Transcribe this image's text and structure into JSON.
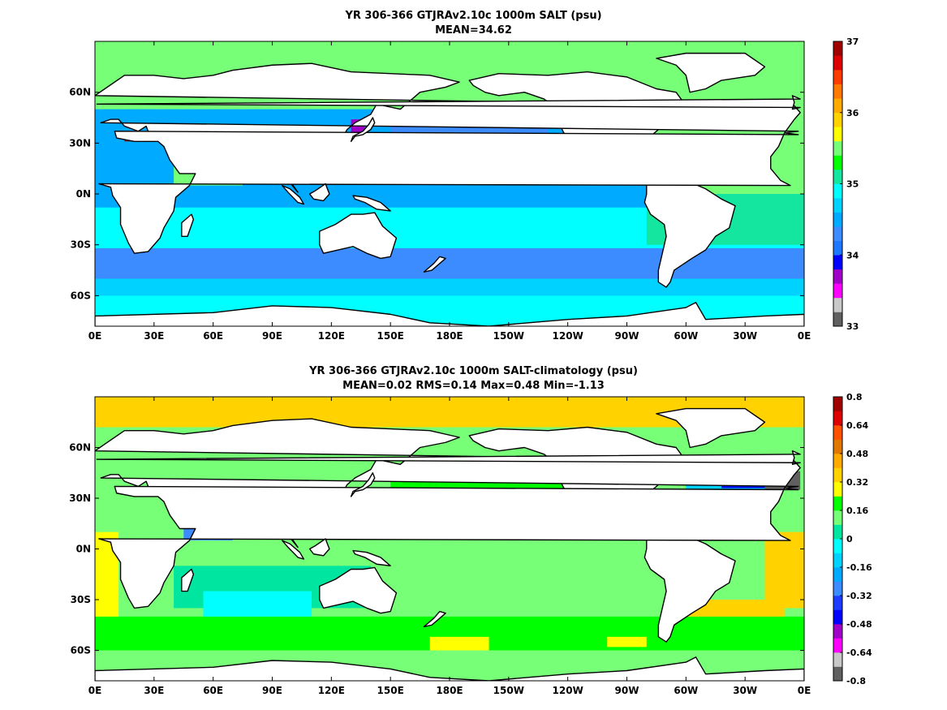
{
  "panels": {
    "top": {
      "title": "YR 306-366 GTJRAv2.10c 1000m SALT (psu)",
      "subtitle": "MEAN=34.62"
    },
    "bottom": {
      "title": "YR 306-366 GTJRAv2.10c 1000m SALT-climatology (psu)",
      "subtitle": "MEAN=0.02   RMS=0.14   Max=0.48   Min=-1.13"
    }
  },
  "chart_data": [
    {
      "type": "heatmap",
      "title": "YR 306-366 GTJRAv2.10c 1000m SALT (psu)",
      "subtitle": "MEAN=34.62",
      "xlabels": [
        "0E",
        "30E",
        "60E",
        "90E",
        "120E",
        "150E",
        "180E",
        "150W",
        "120W",
        "90W",
        "60W",
        "30W",
        "0E"
      ],
      "ylabels": [
        "60N",
        "30N",
        "0N",
        "30S",
        "60S"
      ],
      "xlim": [
        0,
        360
      ],
      "ylim": [
        -78,
        90
      ],
      "colorbar": {
        "ticks": [
          "37",
          "36",
          "35",
          "34",
          "33"
        ],
        "range": [
          33,
          37
        ],
        "levels": [
          33.0,
          33.2,
          33.4,
          33.6,
          33.8,
          34.0,
          34.2,
          34.4,
          34.6,
          34.8,
          35.0,
          35.2,
          35.4,
          35.6,
          35.8,
          36.0,
          36.2,
          36.4,
          36.6,
          36.8,
          37.0
        ],
        "colors": [
          "#606060",
          "#c8c8c8",
          "#ff00ff",
          "#a000c8",
          "#0000ff",
          "#1e78ff",
          "#3c8cff",
          "#00aaff",
          "#00d2ff",
          "#00ffff",
          "#14e6a0",
          "#00ff00",
          "#78ff78",
          "#ffff00",
          "#ffd200",
          "#ffaa00",
          "#ff7800",
          "#ff3c00",
          "#dc0000",
          "#a00000"
        ]
      }
    },
    {
      "type": "heatmap",
      "title": "YR 306-366 GTJRAv2.10c 1000m SALT-climatology (psu)",
      "subtitle": "MEAN=0.02   RMS=0.14   Max=0.48   Min=-1.13",
      "xlabels": [
        "0E",
        "30E",
        "60E",
        "90E",
        "120E",
        "150E",
        "180E",
        "150W",
        "120W",
        "90W",
        "60W",
        "30W",
        "0E"
      ],
      "ylabels": [
        "60N",
        "30N",
        "0N",
        "30S",
        "60S"
      ],
      "xlim": [
        0,
        360
      ],
      "ylim": [
        -78,
        90
      ],
      "colorbar": {
        "ticks": [
          "0.8",
          "0.64",
          "0.48",
          "0.32",
          "0.16",
          "0",
          "-0.16",
          "-0.32",
          "-0.48",
          "-0.64",
          "-0.8"
        ],
        "range": [
          -0.8,
          0.8
        ],
        "colors": [
          "#606060",
          "#c8c8c8",
          "#ff00ff",
          "#a000c8",
          "#0000ff",
          "#1e3cff",
          "#3c8cff",
          "#00aaff",
          "#00d2ff",
          "#00ffff",
          "#00e6a0",
          "#78ff78",
          "#00ff00",
          "#ffff00",
          "#ffd200",
          "#ffaa00",
          "#e07800",
          "#ff5000",
          "#dc0000",
          "#a00000"
        ]
      }
    }
  ]
}
